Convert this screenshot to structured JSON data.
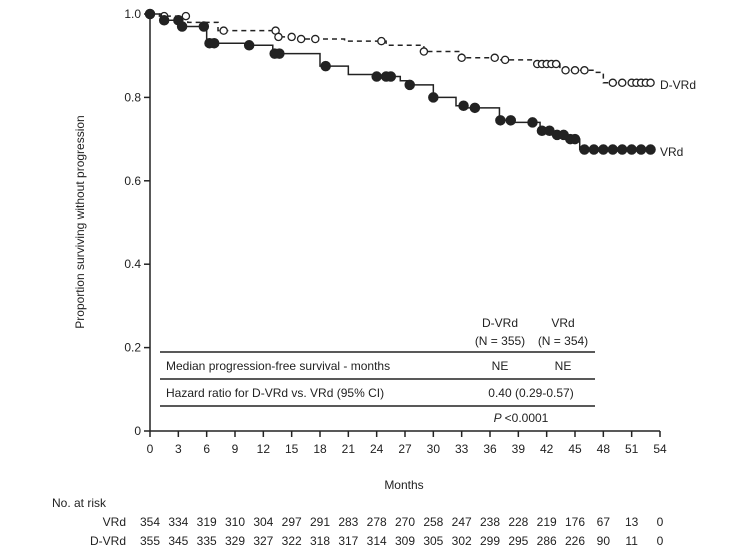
{
  "chart_data": {
    "type": "line",
    "subtype": "kaplan-meier",
    "xlabel": "Months",
    "ylabel": "Proportion surviving without progression",
    "xlim": [
      0,
      54
    ],
    "ylim": [
      0,
      1.0
    ],
    "xticks": [
      0,
      3,
      6,
      9,
      12,
      15,
      18,
      21,
      24,
      27,
      30,
      33,
      36,
      39,
      42,
      45,
      48,
      51,
      54
    ],
    "yticks": [
      0,
      0.2,
      0.4,
      0.6,
      0.8,
      1.0
    ],
    "ytick_labels": [
      "0",
      "0.2",
      "0.4",
      "0.6",
      "0.8",
      "1.0"
    ],
    "grid": false,
    "series": [
      {
        "name": "D-VRd",
        "style": "dashed",
        "marker": "open-circle",
        "color": "#222222",
        "x": [
          0,
          1,
          4,
          7.2,
          13.5,
          16,
          20.6,
          25,
          29,
          33,
          37,
          40.7,
          43.4,
          47,
          48,
          53
        ],
        "y": [
          1.0,
          0.995,
          0.98,
          0.96,
          0.945,
          0.94,
          0.935,
          0.925,
          0.91,
          0.895,
          0.89,
          0.88,
          0.865,
          0.86,
          0.835,
          0.835
        ],
        "censored_x": [
          1.5,
          3.8,
          7.8,
          13.3,
          13.6,
          15,
          16,
          17.5,
          24.5,
          29,
          33,
          36.5,
          37.6,
          41,
          41.5,
          42,
          42.5,
          43,
          44,
          45,
          46,
          49,
          50,
          51,
          51.5,
          52,
          52.5,
          53
        ]
      },
      {
        "name": "VRd",
        "style": "solid",
        "marker": "filled-circle",
        "color": "#222222",
        "x": [
          0,
          1.2,
          3.2,
          6,
          10.4,
          13,
          18,
          21,
          24,
          26.5,
          27.5,
          30,
          32.4,
          33.5,
          37,
          38.4,
          41.3,
          42.5,
          44,
          45.5,
          53
        ],
        "y": [
          1.0,
          0.985,
          0.97,
          0.93,
          0.925,
          0.905,
          0.875,
          0.855,
          0.85,
          0.84,
          0.83,
          0.8,
          0.78,
          0.775,
          0.745,
          0.74,
          0.72,
          0.71,
          0.7,
          0.675,
          0.675
        ],
        "censored_x": [
          0,
          1.5,
          3,
          3.4,
          5.7,
          6.3,
          6.8,
          10.5,
          13.2,
          13.7,
          18.6,
          24,
          25,
          25.5,
          27.5,
          30,
          33.2,
          34.4,
          37.1,
          38.2,
          40.5,
          41.5,
          42.3,
          43.1,
          43.8,
          44.5,
          45,
          46,
          47,
          48,
          49,
          50,
          51,
          52,
          53
        ]
      }
    ],
    "series_labels": [
      "D-VRd",
      "VRd"
    ],
    "inset_table": {
      "col_headers": [
        [
          "D-VRd",
          "(N = 355)"
        ],
        [
          "VRd",
          "(N = 354)"
        ]
      ],
      "rows": [
        {
          "label": "Median progression-free survival - months",
          "values": [
            "NE",
            "NE"
          ]
        },
        {
          "label": "Hazard ratio for D-VRd vs. VRd (95% CI)",
          "value": "0.40 (0.29-0.57)"
        }
      ],
      "p_label": "P",
      "p_value": "<0.0001"
    },
    "at_risk": {
      "title": "No. at risk",
      "rows": [
        {
          "label": "VRd",
          "values": [
            "354",
            "334",
            "319",
            "310",
            "304",
            "297",
            "291",
            "283",
            "278",
            "270",
            "258",
            "247",
            "238",
            "228",
            "219",
            "176",
            "67",
            "13",
            "0"
          ]
        },
        {
          "label": "D-VRd",
          "values": [
            "355",
            "345",
            "335",
            "329",
            "327",
            "322",
            "318",
            "317",
            "314",
            "309",
            "305",
            "302",
            "299",
            "295",
            "286",
            "226",
            "90",
            "11",
            "0"
          ]
        }
      ]
    }
  }
}
